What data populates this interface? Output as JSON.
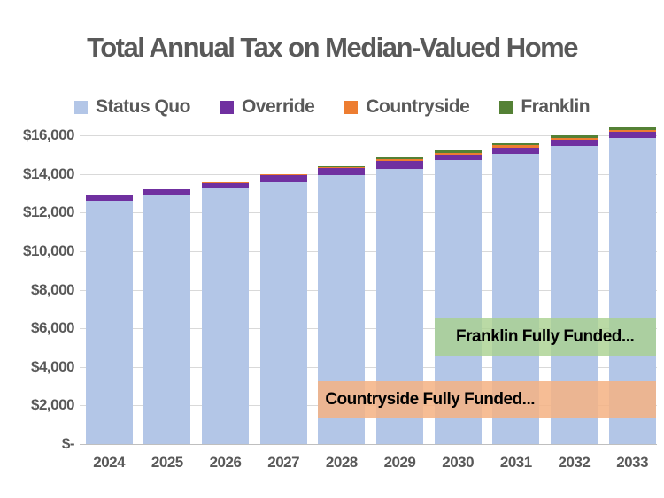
{
  "title": "Total Annual Tax on Median-Valued Home",
  "colors": {
    "title_text": "#595959",
    "axis_text": "#595959",
    "gridline": "#d9d9d9",
    "axis_line": "#bfbfbf",
    "status_quo": "#b3c6e7",
    "override": "#7030a0",
    "countryside": "#ed7d31",
    "franklin": "#548135",
    "annotation_text": "#000000",
    "countryside_box_fill": "rgba(244,177,131,0.85)",
    "franklin_box_fill": "rgba(169,209,142,0.8)"
  },
  "chart_data": {
    "type": "bar",
    "stacked": true,
    "title": "Total Annual Tax on Median-Valued Home",
    "xlabel": "",
    "ylabel": "",
    "grid": true,
    "legend_position": "top",
    "ylim": [
      0,
      16500
    ],
    "ytick_step": 2000,
    "ytick_labels": [
      "$-",
      "$2,000",
      "$4,000",
      "$6,000",
      "$8,000",
      "$10,000",
      "$12,000",
      "$14,000",
      "$16,000"
    ],
    "ytick_values": [
      0,
      2000,
      4000,
      6000,
      8000,
      10000,
      12000,
      14000,
      16000
    ],
    "categories": [
      "2024",
      "2025",
      "2026",
      "2027",
      "2028",
      "2029",
      "2030",
      "2031",
      "2032",
      "2033"
    ],
    "series": [
      {
        "name": "Status Quo",
        "color": "#b3c6e7",
        "values": [
          12600,
          12900,
          13230,
          13580,
          13920,
          14270,
          14700,
          15040,
          15450,
          15840
        ]
      },
      {
        "name": "Override",
        "color": "#7030a0",
        "values": [
          300,
          300,
          310,
          340,
          370,
          380,
          300,
          340,
          310,
          340
        ]
      },
      {
        "name": "Countryside",
        "color": "#ed7d31",
        "values": [
          0,
          25,
          30,
          50,
          60,
          100,
          95,
          95,
          100,
          100
        ]
      },
      {
        "name": "Franklin",
        "color": "#548135",
        "values": [
          0,
          0,
          0,
          0,
          40,
          110,
          125,
          120,
          120,
          135
        ]
      }
    ],
    "stack_totals": [
      12900,
      13225,
      13570,
      13970,
      14390,
      14860,
      15220,
      15595,
      15980,
      16415
    ],
    "annotations": [
      {
        "text": "Franklin Fully Funded...",
        "fill": "rgba(169,209,142,0.8)",
        "x_start_category": "2030",
        "x_end": "plot_right",
        "y_top_value": 6500,
        "y_bottom_value": 4550,
        "align": "center"
      },
      {
        "text": "Countryside Fully Funded...",
        "fill": "rgba(244,177,131,0.85)",
        "x_start_category": "2028",
        "x_end": "plot_right",
        "y_top_value": 3250,
        "y_bottom_value": 1350,
        "align": "left"
      }
    ]
  }
}
